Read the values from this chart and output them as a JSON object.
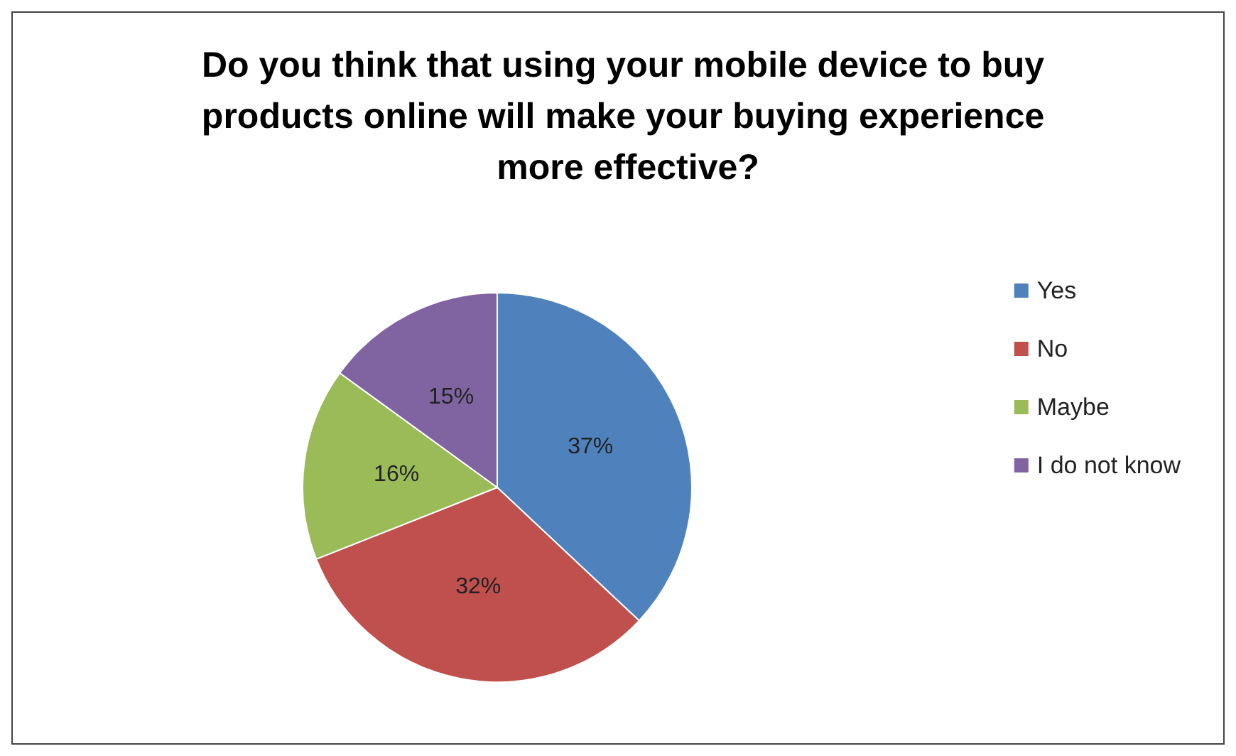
{
  "chart_data": {
    "type": "pie",
    "title": "Do you think that using your mobile device to buy products online will make your buying experience more effective?",
    "categories": [
      "Yes",
      "No",
      "Maybe",
      "I do not know"
    ],
    "values": [
      37,
      32,
      16,
      15
    ],
    "value_labels": [
      "37%",
      "32%",
      "16%",
      "15%"
    ],
    "colors": [
      "#4f81bd",
      "#c0504d",
      "#9bbb59",
      "#8064a2"
    ],
    "legend": "right"
  }
}
